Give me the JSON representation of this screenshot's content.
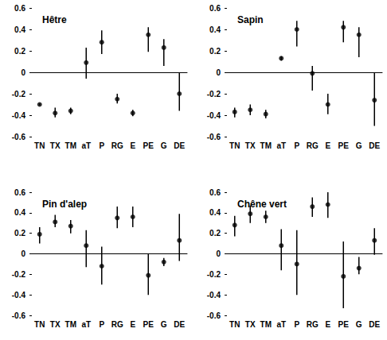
{
  "chart_data": [
    {
      "type": "scatter",
      "title": "Hêtre",
      "color": "#000000",
      "categories": [
        "TN",
        "TX",
        "TM",
        "aT",
        "P",
        "RG",
        "E",
        "PE",
        "G",
        "DE"
      ],
      "values": [
        -0.3,
        -0.38,
        -0.36,
        0.09,
        0.28,
        -0.25,
        -0.38,
        0.35,
        0.23,
        -0.2
      ],
      "lower": [
        -0.31,
        -0.42,
        -0.39,
        -0.06,
        0.17,
        -0.29,
        -0.41,
        0.19,
        0.06,
        -0.36
      ],
      "upper": [
        -0.29,
        -0.33,
        -0.33,
        0.23,
        0.39,
        -0.2,
        -0.35,
        0.42,
        0.31,
        0.0
      ],
      "ylim": [
        -0.6,
        0.6
      ],
      "yticks": [
        -0.6,
        -0.4,
        -0.2,
        0,
        0.2,
        0.4,
        0.6
      ],
      "grid": false
    },
    {
      "type": "scatter",
      "title": "Sapin",
      "color": "#000000",
      "categories": [
        "TN",
        "TX",
        "TM",
        "aT",
        "P",
        "RG",
        "E",
        "PE",
        "G",
        "DE"
      ],
      "values": [
        -0.37,
        -0.35,
        -0.39,
        0.13,
        0.4,
        -0.01,
        -0.3,
        0.42,
        0.35,
        -0.26
      ],
      "lower": [
        -0.42,
        -0.4,
        -0.43,
        0.11,
        0.24,
        -0.17,
        -0.39,
        0.28,
        0.14,
        -0.5
      ],
      "upper": [
        -0.33,
        -0.3,
        -0.35,
        0.15,
        0.48,
        0.06,
        -0.2,
        0.48,
        0.42,
        0.0
      ],
      "ylim": [
        -0.6,
        0.6
      ],
      "yticks": [
        -0.6,
        -0.4,
        -0.2,
        0,
        0.2,
        0.4,
        0.6
      ],
      "grid": false
    },
    {
      "type": "scatter",
      "title": "Pin d'alep",
      "color": "#000000",
      "categories": [
        "TN",
        "TX",
        "TM",
        "aT",
        "P",
        "RG",
        "E",
        "PE",
        "G",
        "DE"
      ],
      "values": [
        0.19,
        0.31,
        0.27,
        0.08,
        -0.12,
        0.35,
        0.36,
        -0.21,
        -0.08,
        0.13
      ],
      "lower": [
        0.1,
        0.26,
        0.2,
        -0.13,
        -0.3,
        0.25,
        0.26,
        -0.4,
        -0.12,
        -0.07
      ],
      "upper": [
        0.26,
        0.38,
        0.33,
        0.23,
        0.07,
        0.46,
        0.46,
        0.0,
        -0.04,
        0.39
      ],
      "ylim": [
        -0.6,
        0.6
      ],
      "yticks": [
        -0.6,
        -0.4,
        -0.2,
        0,
        0.2,
        0.4,
        0.6
      ],
      "grid": false
    },
    {
      "type": "scatter",
      "title": "Chêne vert",
      "color": "#000000",
      "categories": [
        "TN",
        "TX",
        "TM",
        "aT",
        "P",
        "RG",
        "E",
        "PE",
        "G",
        "DE"
      ],
      "values": [
        0.28,
        0.39,
        0.36,
        0.08,
        -0.1,
        0.46,
        0.48,
        -0.22,
        -0.14,
        0.13
      ],
      "lower": [
        0.17,
        0.3,
        0.3,
        -0.16,
        -0.4,
        0.36,
        0.35,
        -0.53,
        -0.2,
        -0.01
      ],
      "upper": [
        0.37,
        0.47,
        0.42,
        0.24,
        0.23,
        0.55,
        0.6,
        0.12,
        -0.03,
        0.25
      ],
      "ylim": [
        -0.6,
        0.6
      ],
      "yticks": [
        -0.6,
        -0.4,
        -0.2,
        0,
        0.2,
        0.4,
        0.6
      ],
      "grid": false
    }
  ]
}
